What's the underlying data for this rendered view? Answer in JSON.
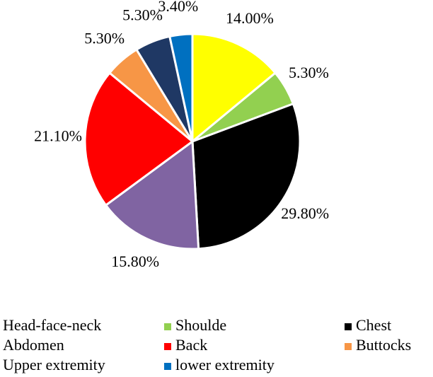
{
  "chart_data": {
    "type": "pie",
    "categories": [
      "Head-face-neck",
      "Shoulde",
      "Chest",
      "Abdomen",
      "Back",
      "Buttocks",
      "Upper extremity",
      "lower extremity"
    ],
    "values": [
      14,
      5.3,
      29.8,
      15.8,
      21.1,
      5.3,
      5.3,
      3.4
    ],
    "value_labels": [
      "14.00%",
      "5.30%",
      "29.80%",
      "15.80%",
      "21.10%",
      "5.30%",
      "5.30%",
      "3.40%"
    ],
    "colors": [
      "#ffff00",
      "#92d050",
      "#000000",
      "#8064a2",
      "#ff0000",
      "#f79646",
      "#1f3864",
      "#0070c0"
    ],
    "legend": "bottom"
  }
}
